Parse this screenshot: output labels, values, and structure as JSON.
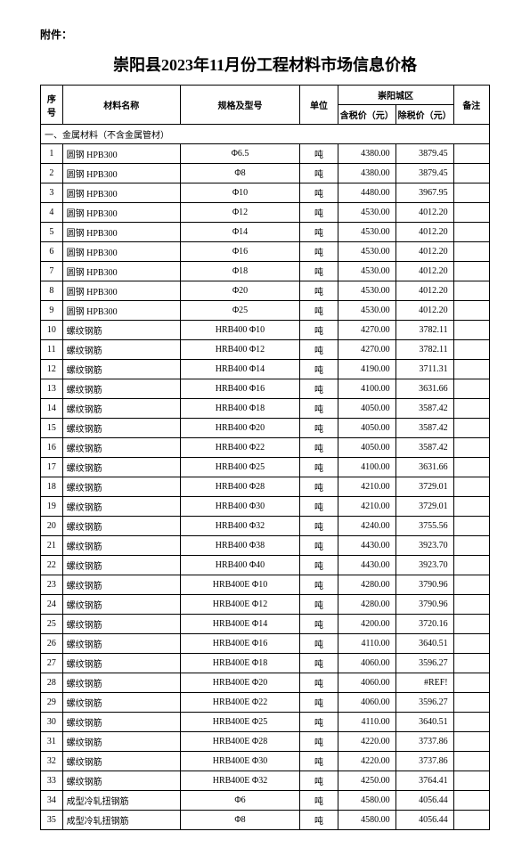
{
  "attachment_label": "附件：",
  "title": "崇阳县2023年11月份工程材料市场信息价格",
  "headers": {
    "seq": "序号",
    "name": "材料名称",
    "spec": "规格及型号",
    "unit": "单位",
    "region": "崇阳城区",
    "price_tax": "含税价（元）",
    "price_notax": "除税价（元）",
    "remark": "备注"
  },
  "section_header": "一、金属材料（不含金属管材）",
  "rows": [
    {
      "seq": "1",
      "name": "圆钢 HPB300",
      "spec": "Φ6.5",
      "unit": "吨",
      "tax": "4380.00",
      "notax": "3879.45",
      "remark": ""
    },
    {
      "seq": "2",
      "name": "圆钢 HPB300",
      "spec": "Φ8",
      "unit": "吨",
      "tax": "4380.00",
      "notax": "3879.45",
      "remark": ""
    },
    {
      "seq": "3",
      "name": "圆钢 HPB300",
      "spec": "Φ10",
      "unit": "吨",
      "tax": "4480.00",
      "notax": "3967.95",
      "remark": ""
    },
    {
      "seq": "4",
      "name": "圆钢 HPB300",
      "spec": "Φ12",
      "unit": "吨",
      "tax": "4530.00",
      "notax": "4012.20",
      "remark": ""
    },
    {
      "seq": "5",
      "name": "圆钢 HPB300",
      "spec": "Φ14",
      "unit": "吨",
      "tax": "4530.00",
      "notax": "4012.20",
      "remark": ""
    },
    {
      "seq": "6",
      "name": "圆钢 HPB300",
      "spec": "Φ16",
      "unit": "吨",
      "tax": "4530.00",
      "notax": "4012.20",
      "remark": ""
    },
    {
      "seq": "7",
      "name": "圆钢 HPB300",
      "spec": "Φ18",
      "unit": "吨",
      "tax": "4530.00",
      "notax": "4012.20",
      "remark": ""
    },
    {
      "seq": "8",
      "name": "圆钢 HPB300",
      "spec": "Φ20",
      "unit": "吨",
      "tax": "4530.00",
      "notax": "4012.20",
      "remark": ""
    },
    {
      "seq": "9",
      "name": "圆钢 HPB300",
      "spec": "Φ25",
      "unit": "吨",
      "tax": "4530.00",
      "notax": "4012.20",
      "remark": ""
    },
    {
      "seq": "10",
      "name": "螺纹钢筋",
      "spec": "HRB400  Φ10",
      "unit": "吨",
      "tax": "4270.00",
      "notax": "3782.11",
      "remark": ""
    },
    {
      "seq": "11",
      "name": "螺纹钢筋",
      "spec": "HRB400  Φ12",
      "unit": "吨",
      "tax": "4270.00",
      "notax": "3782.11",
      "remark": ""
    },
    {
      "seq": "12",
      "name": "螺纹钢筋",
      "spec": "HRB400  Φ14",
      "unit": "吨",
      "tax": "4190.00",
      "notax": "3711.31",
      "remark": ""
    },
    {
      "seq": "13",
      "name": "螺纹钢筋",
      "spec": "HRB400  Φ16",
      "unit": "吨",
      "tax": "4100.00",
      "notax": "3631.66",
      "remark": ""
    },
    {
      "seq": "14",
      "name": "螺纹钢筋",
      "spec": "HRB400  Φ18",
      "unit": "吨",
      "tax": "4050.00",
      "notax": "3587.42",
      "remark": ""
    },
    {
      "seq": "15",
      "name": "螺纹钢筋",
      "spec": "HRB400  Φ20",
      "unit": "吨",
      "tax": "4050.00",
      "notax": "3587.42",
      "remark": ""
    },
    {
      "seq": "16",
      "name": "螺纹钢筋",
      "spec": "HRB400  Φ22",
      "unit": "吨",
      "tax": "4050.00",
      "notax": "3587.42",
      "remark": ""
    },
    {
      "seq": "17",
      "name": "螺纹钢筋",
      "spec": "HRB400  Φ25",
      "unit": "吨",
      "tax": "4100.00",
      "notax": "3631.66",
      "remark": ""
    },
    {
      "seq": "18",
      "name": "螺纹钢筋",
      "spec": "HRB400  Φ28",
      "unit": "吨",
      "tax": "4210.00",
      "notax": "3729.01",
      "remark": ""
    },
    {
      "seq": "19",
      "name": "螺纹钢筋",
      "spec": "HRB400  Φ30",
      "unit": "吨",
      "tax": "4210.00",
      "notax": "3729.01",
      "remark": ""
    },
    {
      "seq": "20",
      "name": "螺纹钢筋",
      "spec": "HRB400  Φ32",
      "unit": "吨",
      "tax": "4240.00",
      "notax": "3755.56",
      "remark": ""
    },
    {
      "seq": "21",
      "name": "螺纹钢筋",
      "spec": "HRB400  Φ38",
      "unit": "吨",
      "tax": "4430.00",
      "notax": "3923.70",
      "remark": ""
    },
    {
      "seq": "22",
      "name": "螺纹钢筋",
      "spec": "HRB400  Φ40",
      "unit": "吨",
      "tax": "4430.00",
      "notax": "3923.70",
      "remark": ""
    },
    {
      "seq": "23",
      "name": "螺纹钢筋",
      "spec": "HRB400E  Φ10",
      "unit": "吨",
      "tax": "4280.00",
      "notax": "3790.96",
      "remark": ""
    },
    {
      "seq": "24",
      "name": "螺纹钢筋",
      "spec": "HRB400E  Φ12",
      "unit": "吨",
      "tax": "4280.00",
      "notax": "3790.96",
      "remark": ""
    },
    {
      "seq": "25",
      "name": "螺纹钢筋",
      "spec": "HRB400E  Φ14",
      "unit": "吨",
      "tax": "4200.00",
      "notax": "3720.16",
      "remark": ""
    },
    {
      "seq": "26",
      "name": "螺纹钢筋",
      "spec": "HRB400E  Φ16",
      "unit": "吨",
      "tax": "4110.00",
      "notax": "3640.51",
      "remark": ""
    },
    {
      "seq": "27",
      "name": "螺纹钢筋",
      "spec": "HRB400E  Φ18",
      "unit": "吨",
      "tax": "4060.00",
      "notax": "3596.27",
      "remark": ""
    },
    {
      "seq": "28",
      "name": "螺纹钢筋",
      "spec": "HRB400E  Φ20",
      "unit": "吨",
      "tax": "4060.00",
      "notax": "#REF!",
      "remark": ""
    },
    {
      "seq": "29",
      "name": "螺纹钢筋",
      "spec": "HRB400E  Φ22",
      "unit": "吨",
      "tax": "4060.00",
      "notax": "3596.27",
      "remark": ""
    },
    {
      "seq": "30",
      "name": "螺纹钢筋",
      "spec": "HRB400E  Φ25",
      "unit": "吨",
      "tax": "4110.00",
      "notax": "3640.51",
      "remark": ""
    },
    {
      "seq": "31",
      "name": "螺纹钢筋",
      "spec": "HRB400E  Φ28",
      "unit": "吨",
      "tax": "4220.00",
      "notax": "3737.86",
      "remark": ""
    },
    {
      "seq": "32",
      "name": "螺纹钢筋",
      "spec": "HRB400E  Φ30",
      "unit": "吨",
      "tax": "4220.00",
      "notax": "3737.86",
      "remark": ""
    },
    {
      "seq": "33",
      "name": "螺纹钢筋",
      "spec": "HRB400E  Φ32",
      "unit": "吨",
      "tax": "4250.00",
      "notax": "3764.41",
      "remark": ""
    },
    {
      "seq": "34",
      "name": "成型冷轧扭钢筋",
      "spec": "Φ6",
      "unit": "吨",
      "tax": "4580.00",
      "notax": "4056.44",
      "remark": ""
    },
    {
      "seq": "35",
      "name": "成型冷轧扭钢筋",
      "spec": "Φ8",
      "unit": "吨",
      "tax": "4580.00",
      "notax": "4056.44",
      "remark": ""
    }
  ]
}
